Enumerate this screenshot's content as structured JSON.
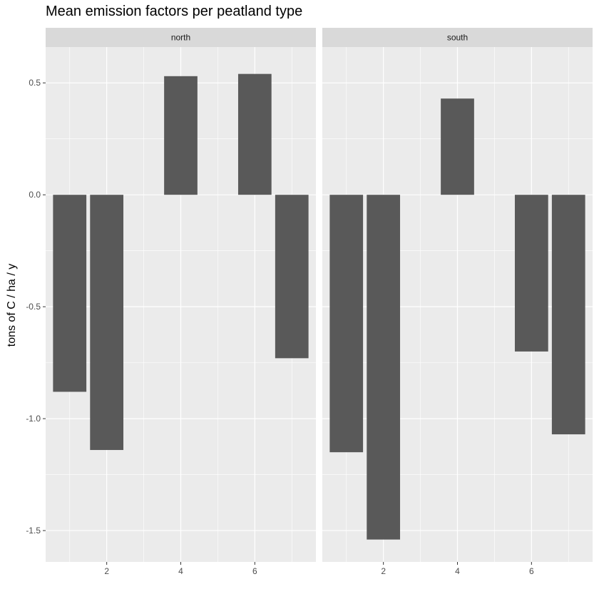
{
  "chart_data": {
    "type": "bar",
    "title": "Mean emission factors per peatland type",
    "xlabel": "",
    "ylabel": "tons of C / ha / y",
    "x": [
      1,
      2,
      3,
      4,
      5,
      6,
      7
    ],
    "xlim": [
      0.35,
      7.65
    ],
    "xticks": [
      2,
      4,
      6
    ],
    "ylim": [
      -1.64,
      0.66
    ],
    "yticks": [
      -1.5,
      -1.0,
      -0.5,
      0.0,
      0.5
    ],
    "ytick_labels": [
      "-1.5",
      "-1.0",
      "-0.5",
      "0.0",
      "0.5"
    ],
    "grid": true,
    "bar_color": "#595959",
    "panel_background": "#ebebeb",
    "strip_background": "#d9d9d9",
    "facets": [
      {
        "label": "north",
        "values": [
          -0.88,
          -1.14,
          null,
          0.53,
          null,
          0.54,
          -0.73
        ]
      },
      {
        "label": "south",
        "values": [
          -1.15,
          -1.54,
          null,
          0.43,
          null,
          -0.7,
          -1.07
        ]
      }
    ]
  }
}
